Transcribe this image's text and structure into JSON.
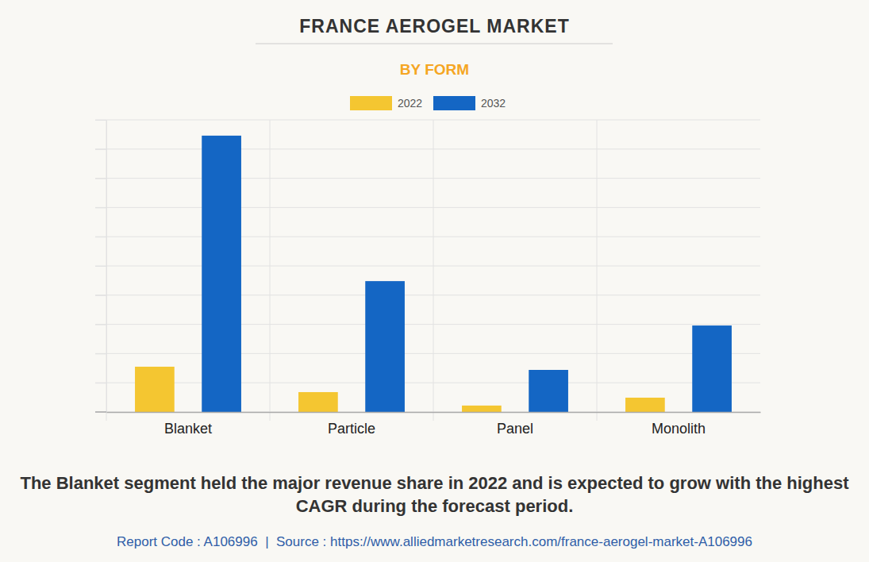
{
  "chart_data": {
    "type": "bar",
    "title": "FRANCE AEROGEL MARKET",
    "subtitle": "BY FORM",
    "categories": [
      "Blanket",
      "Particle",
      "Panel",
      "Monolith"
    ],
    "series": [
      {
        "name": "2022",
        "color": "#f4c631",
        "values": [
          1.55,
          0.68,
          0.22,
          0.49
        ]
      },
      {
        "name": "2032",
        "color": "#1466c4",
        "values": [
          9.46,
          4.48,
          1.44,
          2.96
        ]
      }
    ],
    "ylim": [
      0,
      10
    ],
    "yticks": [
      0,
      1,
      2,
      3,
      4,
      5,
      6,
      7,
      8,
      9,
      10
    ],
    "grid": true,
    "tick_labels": "x",
    "legend": "top",
    "annotations": [
      "The Blanket segment held the major revenue share in 2022 and is expected to grow with the highest CAGR during the forecast period.",
      "Report Code : A106996  |  Source : https://www.alliedmarketresearch.com/france-aerogel-market-A106996"
    ]
  }
}
